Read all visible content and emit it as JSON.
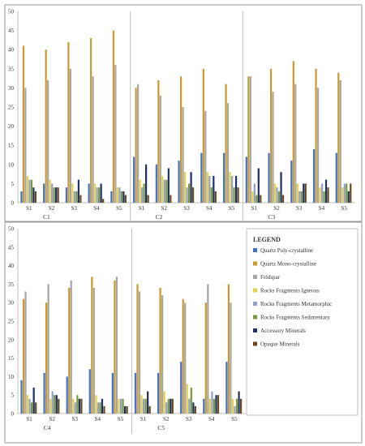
{
  "chart_data": {
    "type": "bar",
    "ylim": [
      0,
      50
    ],
    "yticks": [
      0,
      5,
      10,
      15,
      20,
      25,
      30,
      35,
      40,
      45,
      50
    ],
    "samples": [
      "S1",
      "S2",
      "S3",
      "S4",
      "S5"
    ],
    "series": [
      {
        "name": "Quartz Poly-crystalline",
        "color": "#4472c4"
      },
      {
        "name": "Quartz Mono-crystalline",
        "color": "#c99a2e"
      },
      {
        "name": "Feldspar",
        "color": "#a6a6a6"
      },
      {
        "name": "Rocks Fragments Igneous",
        "color": "#e3d24a"
      },
      {
        "name": "Rocks Fragments Metamorphic",
        "color": "#8e9fd1"
      },
      {
        "name": "Rocks Fragments Sedimentary",
        "color": "#7a9a3a"
      },
      {
        "name": "Accessory Minerals",
        "color": "#1f2f6b"
      },
      {
        "name": "Opaque Minerals",
        "color": "#6b4a1a"
      }
    ],
    "legend_title": "LEGEND",
    "groups": [
      {
        "name": "C1",
        "values": [
          [
            3,
            41,
            30,
            7,
            6,
            6,
            4,
            3
          ],
          [
            5,
            40,
            32,
            6,
            5,
            4,
            4,
            4
          ],
          [
            4,
            42,
            35,
            5,
            3,
            3,
            6,
            2
          ],
          [
            5,
            43,
            33,
            5,
            4,
            4,
            5,
            1
          ],
          [
            3,
            45,
            36,
            4,
            4,
            3,
            3,
            2
          ]
        ]
      },
      {
        "name": "C2",
        "values": [
          [
            12,
            30,
            31,
            6,
            4,
            5,
            10,
            2
          ],
          [
            10,
            32,
            28,
            7,
            6,
            6,
            9,
            2
          ],
          [
            11,
            33,
            25,
            8,
            4,
            5,
            8,
            4
          ],
          [
            13,
            35,
            24,
            8,
            7,
            4,
            7,
            3
          ],
          [
            13,
            31,
            26,
            8,
            7,
            4,
            7,
            4
          ]
        ]
      },
      {
        "name": "C3",
        "values": [
          [
            12,
            33,
            33,
            3,
            5,
            2,
            9,
            2
          ],
          [
            13,
            35,
            29,
            5,
            4,
            3,
            8,
            2
          ],
          [
            11,
            37,
            31,
            5,
            3,
            3,
            5,
            5
          ],
          [
            14,
            35,
            30,
            4,
            5,
            3,
            6,
            4
          ],
          [
            13,
            34,
            32,
            4,
            5,
            5,
            3,
            5
          ]
        ]
      },
      {
        "name": "C4",
        "values": [
          [
            9,
            31,
            33,
            5,
            4,
            3,
            7,
            3
          ],
          [
            11,
            30,
            35,
            4,
            6,
            5,
            5,
            4
          ],
          [
            10,
            34,
            36,
            4,
            3,
            5,
            4,
            4
          ],
          [
            12,
            37,
            34,
            5,
            3,
            3,
            4,
            2
          ],
          [
            11,
            36,
            37,
            4,
            4,
            4,
            2,
            2
          ]
        ]
      },
      {
        "name": "C5",
        "values": [
          [
            11,
            35,
            33,
            5,
            4,
            4,
            6,
            2
          ],
          [
            11,
            34,
            32,
            6,
            3,
            4,
            4,
            4
          ],
          [
            14,
            31,
            30,
            8,
            4,
            7,
            3,
            2
          ],
          [
            4,
            30,
            35,
            4,
            6,
            4,
            5,
            5
          ],
          [
            14,
            35,
            30,
            4,
            2,
            4,
            6,
            4
          ]
        ]
      }
    ]
  }
}
